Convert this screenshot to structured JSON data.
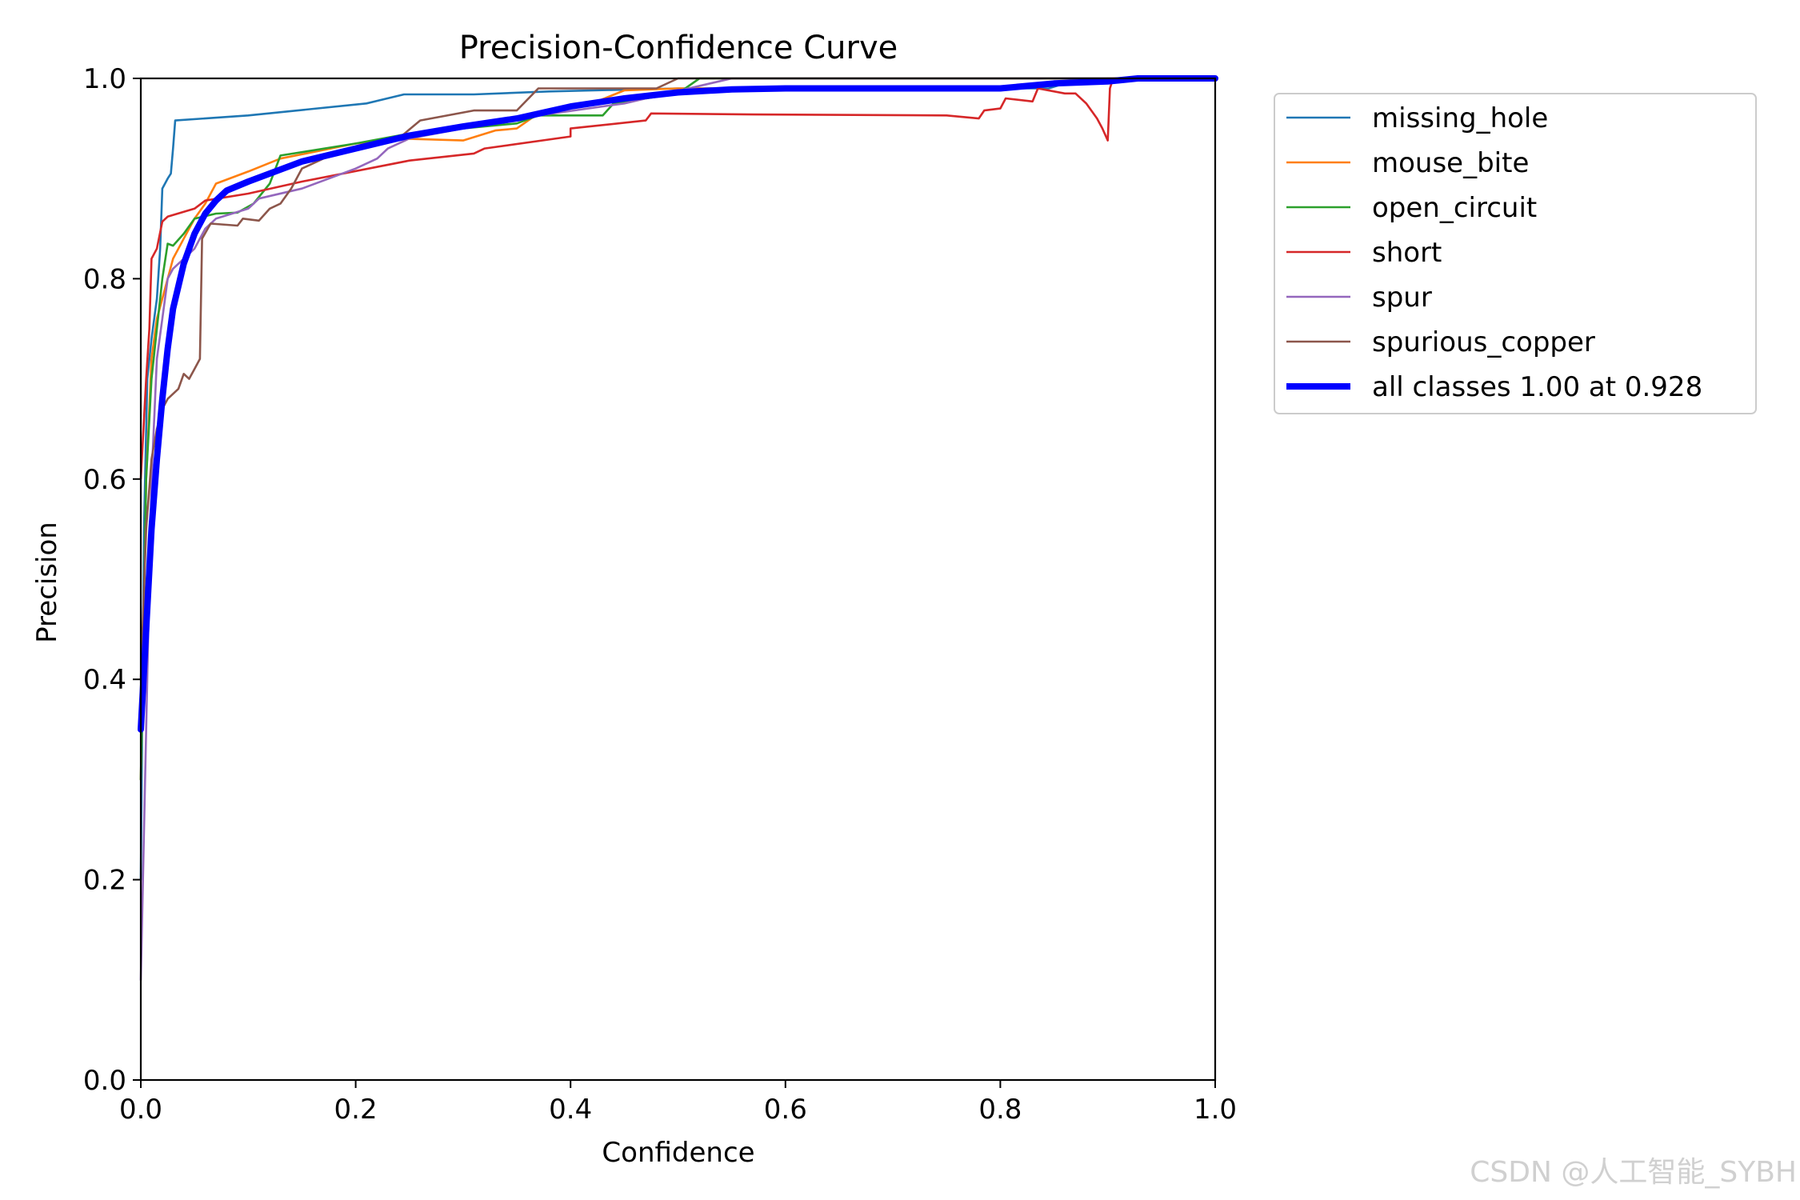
{
  "chart_data": {
    "type": "line",
    "title": "Precision-Confidence Curve",
    "xlabel": "Confidence",
    "ylabel": "Precision",
    "xlim": [
      0,
      1
    ],
    "ylim": [
      0,
      1
    ],
    "xticks": [
      "0.0",
      "0.2",
      "0.4",
      "0.6",
      "0.8",
      "1.0"
    ],
    "yticks": [
      "0.0",
      "0.2",
      "0.4",
      "0.6",
      "0.8",
      "1.0"
    ],
    "grid": false,
    "legend_position": "outside-right-top",
    "series": [
      {
        "name": "missing_hole",
        "color": "#1f77b4",
        "points": [
          [
            0.0,
            0.2
          ],
          [
            0.003,
            0.55
          ],
          [
            0.006,
            0.7
          ],
          [
            0.01,
            0.74
          ],
          [
            0.015,
            0.78
          ],
          [
            0.018,
            0.83
          ],
          [
            0.02,
            0.89
          ],
          [
            0.025,
            0.9
          ],
          [
            0.028,
            0.905
          ],
          [
            0.03,
            0.93
          ],
          [
            0.032,
            0.958
          ],
          [
            0.1,
            0.963
          ],
          [
            0.21,
            0.975
          ],
          [
            0.245,
            0.984
          ],
          [
            0.31,
            0.984
          ],
          [
            0.38,
            0.987
          ],
          [
            0.5,
            0.99
          ],
          [
            0.6,
            0.99
          ],
          [
            0.8,
            0.99
          ],
          [
            0.83,
            0.99
          ],
          [
            0.845,
            0.99
          ],
          [
            0.86,
            0.995
          ],
          [
            0.93,
            1.0
          ],
          [
            1.0,
            1.0
          ]
        ]
      },
      {
        "name": "mouse_bite",
        "color": "#ff7f0e",
        "points": [
          [
            0.0,
            0.3
          ],
          [
            0.005,
            0.6
          ],
          [
            0.01,
            0.72
          ],
          [
            0.015,
            0.76
          ],
          [
            0.02,
            0.78
          ],
          [
            0.025,
            0.8
          ],
          [
            0.03,
            0.82
          ],
          [
            0.04,
            0.84
          ],
          [
            0.05,
            0.86
          ],
          [
            0.06,
            0.875
          ],
          [
            0.07,
            0.895
          ],
          [
            0.1,
            0.907
          ],
          [
            0.13,
            0.92
          ],
          [
            0.2,
            0.935
          ],
          [
            0.24,
            0.94
          ],
          [
            0.3,
            0.938
          ],
          [
            0.33,
            0.948
          ],
          [
            0.35,
            0.95
          ],
          [
            0.37,
            0.965
          ],
          [
            0.42,
            0.975
          ],
          [
            0.45,
            0.988
          ],
          [
            0.5,
            0.99
          ],
          [
            0.8,
            0.99
          ],
          [
            0.82,
            0.99
          ],
          [
            0.85,
            0.993
          ],
          [
            0.9,
            1.0
          ],
          [
            1.0,
            1.0
          ]
        ]
      },
      {
        "name": "open_circuit",
        "color": "#2ca02c",
        "points": [
          [
            0.0,
            0.3
          ],
          [
            0.005,
            0.6
          ],
          [
            0.01,
            0.7
          ],
          [
            0.015,
            0.75
          ],
          [
            0.02,
            0.8
          ],
          [
            0.025,
            0.835
          ],
          [
            0.03,
            0.833
          ],
          [
            0.04,
            0.845
          ],
          [
            0.05,
            0.86
          ],
          [
            0.07,
            0.865
          ],
          [
            0.09,
            0.866
          ],
          [
            0.105,
            0.875
          ],
          [
            0.12,
            0.895
          ],
          [
            0.13,
            0.923
          ],
          [
            0.2,
            0.935
          ],
          [
            0.25,
            0.945
          ],
          [
            0.3,
            0.95
          ],
          [
            0.35,
            0.955
          ],
          [
            0.37,
            0.963
          ],
          [
            0.43,
            0.963
          ],
          [
            0.44,
            0.975
          ],
          [
            0.5,
            0.985
          ],
          [
            0.52,
            1.0
          ],
          [
            0.8,
            1.0
          ],
          [
            1.0,
            1.0
          ]
        ]
      },
      {
        "name": "short",
        "color": "#d62728",
        "points": [
          [
            0.0,
            0.6
          ],
          [
            0.005,
            0.7
          ],
          [
            0.008,
            0.75
          ],
          [
            0.01,
            0.82
          ],
          [
            0.015,
            0.83
          ],
          [
            0.02,
            0.857
          ],
          [
            0.025,
            0.862
          ],
          [
            0.05,
            0.87
          ],
          [
            0.06,
            0.878
          ],
          [
            0.1,
            0.885
          ],
          [
            0.15,
            0.897
          ],
          [
            0.25,
            0.918
          ],
          [
            0.31,
            0.925
          ],
          [
            0.32,
            0.93
          ],
          [
            0.4,
            0.942
          ],
          [
            0.4,
            0.95
          ],
          [
            0.47,
            0.958
          ],
          [
            0.475,
            0.965
          ],
          [
            0.57,
            0.964
          ],
          [
            0.75,
            0.963
          ],
          [
            0.76,
            0.962
          ],
          [
            0.78,
            0.96
          ],
          [
            0.785,
            0.968
          ],
          [
            0.8,
            0.97
          ],
          [
            0.805,
            0.98
          ],
          [
            0.83,
            0.977
          ],
          [
            0.835,
            0.99
          ],
          [
            0.86,
            0.985
          ],
          [
            0.87,
            0.985
          ],
          [
            0.88,
            0.975
          ],
          [
            0.89,
            0.96
          ],
          [
            0.895,
            0.95
          ],
          [
            0.9,
            0.938
          ],
          [
            0.902,
            0.99
          ],
          [
            0.905,
            1.0
          ],
          [
            1.0,
            1.0
          ]
        ]
      },
      {
        "name": "spur",
        "color": "#9467bd",
        "points": [
          [
            0.0,
            0.1
          ],
          [
            0.005,
            0.35
          ],
          [
            0.01,
            0.6
          ],
          [
            0.015,
            0.72
          ],
          [
            0.02,
            0.76
          ],
          [
            0.025,
            0.8
          ],
          [
            0.03,
            0.81
          ],
          [
            0.04,
            0.82
          ],
          [
            0.05,
            0.83
          ],
          [
            0.06,
            0.85
          ],
          [
            0.07,
            0.86
          ],
          [
            0.1,
            0.87
          ],
          [
            0.11,
            0.88
          ],
          [
            0.15,
            0.89
          ],
          [
            0.2,
            0.91
          ],
          [
            0.22,
            0.92
          ],
          [
            0.23,
            0.93
          ],
          [
            0.25,
            0.94
          ],
          [
            0.35,
            0.96
          ],
          [
            0.45,
            0.975
          ],
          [
            0.55,
            1.0
          ],
          [
            1.0,
            1.0
          ]
        ]
      },
      {
        "name": "spurious_copper",
        "color": "#8c564b",
        "points": [
          [
            0.0,
            0.4
          ],
          [
            0.005,
            0.55
          ],
          [
            0.01,
            0.62
          ],
          [
            0.015,
            0.65
          ],
          [
            0.02,
            0.67
          ],
          [
            0.025,
            0.68
          ],
          [
            0.035,
            0.69
          ],
          [
            0.04,
            0.705
          ],
          [
            0.045,
            0.7
          ],
          [
            0.05,
            0.71
          ],
          [
            0.055,
            0.72
          ],
          [
            0.057,
            0.84
          ],
          [
            0.065,
            0.855
          ],
          [
            0.09,
            0.853
          ],
          [
            0.095,
            0.86
          ],
          [
            0.11,
            0.858
          ],
          [
            0.12,
            0.87
          ],
          [
            0.13,
            0.875
          ],
          [
            0.14,
            0.89
          ],
          [
            0.15,
            0.91
          ],
          [
            0.18,
            0.925
          ],
          [
            0.24,
            0.94
          ],
          [
            0.26,
            0.958
          ],
          [
            0.31,
            0.968
          ],
          [
            0.35,
            0.968
          ],
          [
            0.37,
            0.99
          ],
          [
            0.48,
            0.99
          ],
          [
            0.5,
            1.0
          ],
          [
            1.0,
            1.0
          ]
        ]
      },
      {
        "name": "all classes 1.00 at 0.928",
        "color": "#0000ff",
        "thick": true,
        "points": [
          [
            0.0,
            0.35
          ],
          [
            0.005,
            0.45
          ],
          [
            0.01,
            0.55
          ],
          [
            0.015,
            0.62
          ],
          [
            0.02,
            0.68
          ],
          [
            0.025,
            0.73
          ],
          [
            0.03,
            0.77
          ],
          [
            0.04,
            0.815
          ],
          [
            0.05,
            0.845
          ],
          [
            0.06,
            0.865
          ],
          [
            0.07,
            0.878
          ],
          [
            0.08,
            0.888
          ],
          [
            0.1,
            0.897
          ],
          [
            0.15,
            0.917
          ],
          [
            0.2,
            0.93
          ],
          [
            0.25,
            0.943
          ],
          [
            0.3,
            0.952
          ],
          [
            0.35,
            0.96
          ],
          [
            0.4,
            0.972
          ],
          [
            0.45,
            0.98
          ],
          [
            0.5,
            0.986
          ],
          [
            0.55,
            0.989
          ],
          [
            0.6,
            0.99
          ],
          [
            0.7,
            0.99
          ],
          [
            0.8,
            0.99
          ],
          [
            0.85,
            0.995
          ],
          [
            0.9,
            0.997
          ],
          [
            0.928,
            1.0
          ],
          [
            1.0,
            1.0
          ]
        ]
      }
    ]
  },
  "watermark": "CSDN @人工智能_SYBH"
}
